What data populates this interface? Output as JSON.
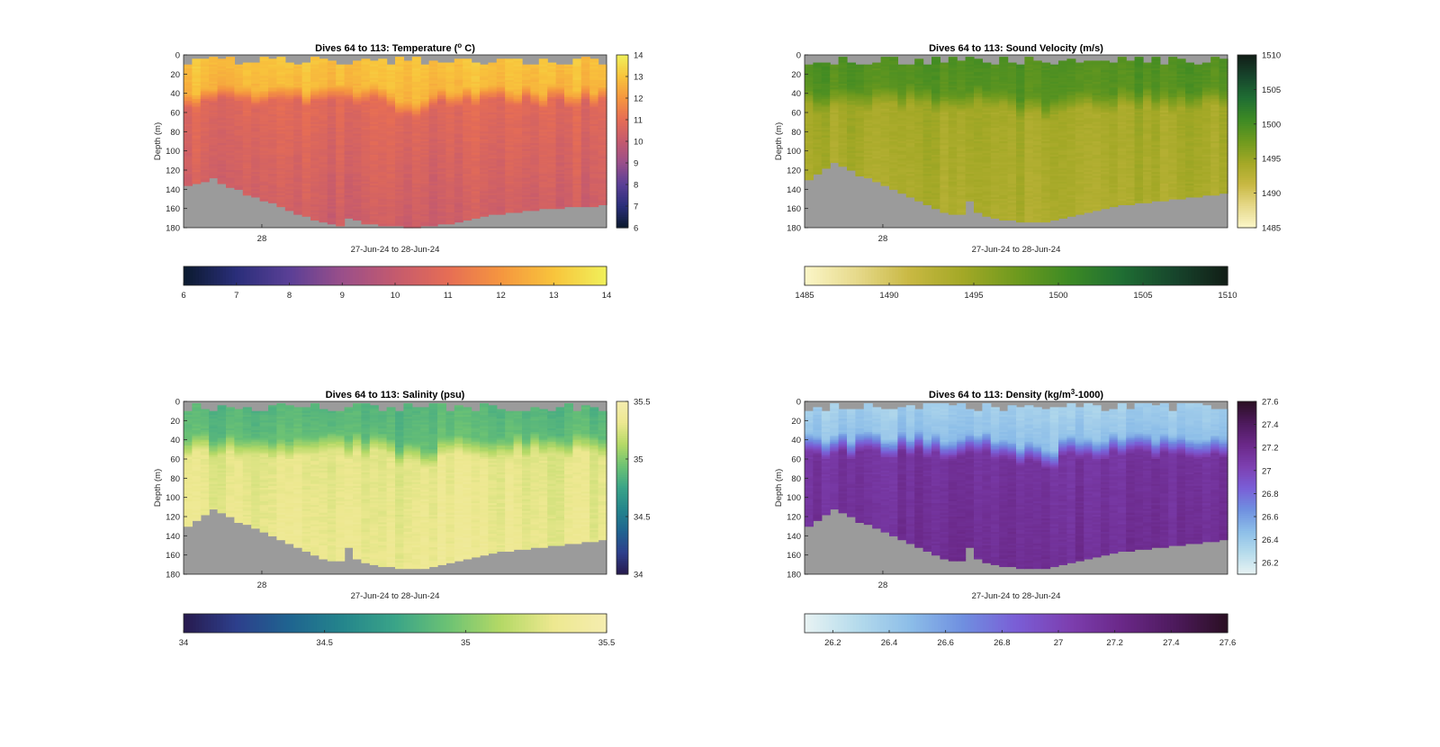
{
  "chart_data": [
    {
      "type": "heatmap",
      "variable": "temperature",
      "title": "Dives 64 to 113: Temperature (",
      "title_sup": "o",
      "title_suffix": " C)",
      "xlabel": "27-Jun-24 to 28-Jun-24",
      "ylabel": "Depth (m)",
      "x_tick_labels": [
        "28"
      ],
      "y_ticks": [
        0,
        20,
        40,
        60,
        80,
        100,
        120,
        140,
        160,
        180
      ],
      "ylim": [
        0,
        180
      ],
      "y_reversed": true,
      "dives": 50,
      "clim": [
        6,
        14
      ],
      "colorbar_ticks": [
        6,
        7,
        8,
        9,
        10,
        11,
        12,
        13,
        14
      ],
      "horizontal_colorbar_ticks": [
        6,
        7,
        8,
        9,
        10,
        11,
        12,
        13,
        14
      ],
      "colormap": [
        "#0b1a2e",
        "#2a2e7a",
        "#5a3f96",
        "#9a4f8a",
        "#c45a6e",
        "#e66d55",
        "#f5963f",
        "#f8c43c",
        "#f0f05a"
      ],
      "missing_color": "#9b9b9b",
      "profile": [
        {
          "depth": 0,
          "value": 13.0
        },
        {
          "depth": 35,
          "value": 12.7
        },
        {
          "depth": 50,
          "value": 10.8
        },
        {
          "depth": 180,
          "value": 10.2
        }
      ],
      "bottom_depth_m": [
        135,
        134,
        131,
        128,
        133,
        137,
        139,
        145,
        148,
        151,
        154,
        158,
        162,
        165,
        168,
        172,
        174,
        176,
        177,
        170,
        172,
        175,
        176,
        177,
        178,
        178,
        179,
        179,
        178,
        177,
        176,
        175,
        173,
        171,
        169,
        167,
        166,
        165,
        164,
        163,
        162,
        161,
        160,
        160,
        159,
        158,
        158,
        157,
        157,
        156
      ]
    },
    {
      "type": "heatmap",
      "variable": "sound_velocity",
      "title": "Dives 64 to 113: Sound Velocity (m/s)",
      "xlabel": "27-Jun-24 to 28-Jun-24",
      "ylabel": "Depth (m)",
      "x_tick_labels": [
        "28"
      ],
      "y_ticks": [
        0,
        20,
        40,
        60,
        80,
        100,
        120,
        140,
        160,
        180
      ],
      "ylim": [
        0,
        180
      ],
      "y_reversed": true,
      "dives": 50,
      "clim": [
        1485,
        1510
      ],
      "colorbar_ticks": [
        1485,
        1490,
        1495,
        1500,
        1505,
        1510
      ],
      "horizontal_colorbar_ticks": [
        1485,
        1490,
        1495,
        1500,
        1505,
        1510
      ],
      "colormap": [
        "#fbf6c8",
        "#e6d98a",
        "#c8b842",
        "#a3a826",
        "#6e9a1e",
        "#3d8a24",
        "#1f6e33",
        "#17452c",
        "#111d16"
      ],
      "missing_color": "#9b9b9b",
      "profile": [
        {
          "depth": 0,
          "value": 1499.5
        },
        {
          "depth": 35,
          "value": 1499.0
        },
        {
          "depth": 55,
          "value": 1494.2
        },
        {
          "depth": 180,
          "value": 1493.5
        }
      ],
      "bottom_depth_m": [
        130,
        124,
        118,
        112,
        116,
        120,
        125,
        128,
        132,
        136,
        140,
        144,
        148,
        152,
        156,
        160,
        163,
        166,
        165,
        152,
        164,
        168,
        170,
        171,
        172,
        173,
        174,
        174,
        173,
        172,
        170,
        168,
        166,
        164,
        162,
        160,
        158,
        156,
        155,
        154,
        153,
        152,
        151,
        150,
        149,
        148,
        147,
        146,
        145,
        144
      ]
    },
    {
      "type": "heatmap",
      "variable": "salinity",
      "title": "Dives 64 to 113: Salinity (psu)",
      "xlabel": "27-Jun-24 to 28-Jun-24",
      "ylabel": "Depth (m)",
      "x_tick_labels": [
        "28"
      ],
      "y_ticks": [
        0,
        20,
        40,
        60,
        80,
        100,
        120,
        140,
        160,
        180
      ],
      "ylim": [
        0,
        180
      ],
      "y_reversed": true,
      "dives": 50,
      "clim": [
        34,
        35.5
      ],
      "colorbar_ticks": [
        34,
        34.5,
        35,
        35.5
      ],
      "horizontal_colorbar_ticks": [
        34,
        34.5,
        35,
        35.5
      ],
      "colormap": [
        "#271a4e",
        "#2d3f8c",
        "#1f6490",
        "#24858c",
        "#3aa488",
        "#6cc274",
        "#b4d966",
        "#ede890",
        "#f5edb0"
      ],
      "missing_color": "#9b9b9b",
      "profile": [
        {
          "depth": 0,
          "value": 34.85
        },
        {
          "depth": 35,
          "value": 34.9
        },
        {
          "depth": 55,
          "value": 35.28
        },
        {
          "depth": 180,
          "value": 35.32
        }
      ],
      "bottom_depth_m": [
        130,
        124,
        118,
        112,
        116,
        120,
        125,
        128,
        132,
        136,
        140,
        144,
        148,
        152,
        156,
        160,
        163,
        166,
        165,
        152,
        164,
        168,
        170,
        171,
        172,
        173,
        174,
        174,
        173,
        172,
        170,
        168,
        166,
        164,
        162,
        160,
        158,
        156,
        155,
        154,
        153,
        152,
        151,
        150,
        149,
        148,
        147,
        146,
        145,
        144
      ]
    },
    {
      "type": "heatmap",
      "variable": "density",
      "title": "Dives 64 to 113: Density (kg/m",
      "title_sup": "3",
      "title_suffix": "-1000)",
      "xlabel": "27-Jun-24 to 28-Jun-24",
      "ylabel": "Depth (m)",
      "x_tick_labels": [
        "28"
      ],
      "y_ticks": [
        0,
        20,
        40,
        60,
        80,
        100,
        120,
        140,
        160,
        180
      ],
      "ylim": [
        0,
        180
      ],
      "y_reversed": true,
      "dives": 50,
      "clim": [
        26.1,
        27.6
      ],
      "colorbar_ticks": [
        26.2,
        26.4,
        26.6,
        26.8,
        27,
        27.2,
        27.4,
        27.6
      ],
      "horizontal_colorbar_ticks": [
        26.2,
        26.4,
        26.6,
        26.8,
        27,
        27.2,
        27.4,
        27.6
      ],
      "colormap": [
        "#e8f3f3",
        "#b5dbec",
        "#8cbde8",
        "#6f8fe0",
        "#7a5ed6",
        "#7d3fb0",
        "#6a2888",
        "#4d1a5c",
        "#2a0f22"
      ],
      "missing_color": "#9b9b9b",
      "profile": [
        {
          "depth": 0,
          "value": 26.35
        },
        {
          "depth": 35,
          "value": 26.45
        },
        {
          "depth": 55,
          "value": 27.12
        },
        {
          "depth": 180,
          "value": 27.18
        }
      ],
      "bottom_depth_m": [
        130,
        124,
        118,
        112,
        116,
        120,
        125,
        128,
        132,
        136,
        140,
        144,
        148,
        152,
        156,
        160,
        163,
        166,
        165,
        152,
        164,
        168,
        170,
        171,
        172,
        173,
        174,
        174,
        173,
        172,
        170,
        168,
        166,
        164,
        162,
        160,
        158,
        156,
        155,
        154,
        153,
        152,
        151,
        150,
        149,
        148,
        147,
        146,
        145,
        144
      ]
    }
  ]
}
